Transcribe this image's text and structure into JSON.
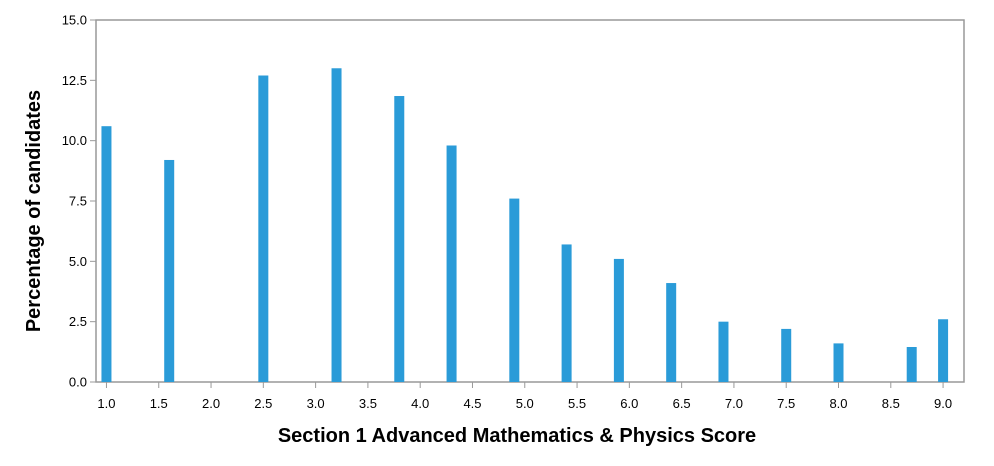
{
  "chart_data": {
    "type": "bar",
    "xlabel": "Section 1 Advanced Mathematics & Physics Score",
    "ylabel": "Percentage of candidates",
    "xlim": [
      0.9,
      9.2
    ],
    "ylim": [
      0,
      15
    ],
    "x_ticks": [
      "1.0",
      "1.5",
      "2.0",
      "2.5",
      "3.0",
      "3.5",
      "4.0",
      "4.5",
      "5.0",
      "5.5",
      "6.0",
      "6.5",
      "7.0",
      "7.5",
      "8.0",
      "8.5",
      "9.0"
    ],
    "y_ticks": [
      "0.0",
      "2.5",
      "5.0",
      "7.5",
      "10.0",
      "12.5",
      "15.0"
    ],
    "grid": false,
    "bar_color": "#2a9bd8",
    "points": [
      {
        "x": 1.0,
        "y": 10.6
      },
      {
        "x": 1.6,
        "y": 9.2
      },
      {
        "x": 2.5,
        "y": 12.7
      },
      {
        "x": 3.2,
        "y": 13.0
      },
      {
        "x": 3.8,
        "y": 11.85
      },
      {
        "x": 4.3,
        "y": 9.8
      },
      {
        "x": 4.9,
        "y": 7.6
      },
      {
        "x": 5.4,
        "y": 5.7
      },
      {
        "x": 5.9,
        "y": 5.1
      },
      {
        "x": 6.4,
        "y": 4.1
      },
      {
        "x": 6.9,
        "y": 2.5
      },
      {
        "x": 7.5,
        "y": 2.2
      },
      {
        "x": 8.0,
        "y": 1.6
      },
      {
        "x": 8.7,
        "y": 1.45
      },
      {
        "x": 9.0,
        "y": 2.6
      }
    ]
  }
}
